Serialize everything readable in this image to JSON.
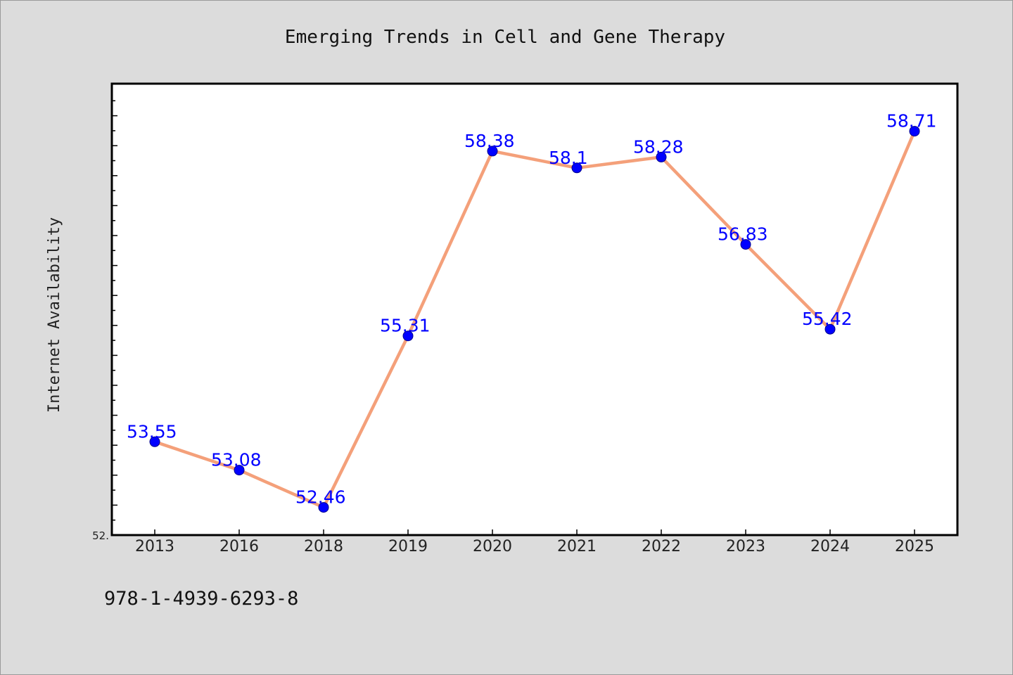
{
  "chart_data": {
    "type": "line",
    "title": "Emerging Trends in Cell and Gene Therapy",
    "xlabel": "",
    "ylabel": "Internet Availability",
    "categories": [
      "2013",
      "2016",
      "2018",
      "2019",
      "2020",
      "2021",
      "2022",
      "2023",
      "2024",
      "2025"
    ],
    "series": [
      {
        "values": [
          53.55,
          53.08,
          52.46,
          55.31,
          58.38,
          58.1,
          58.28,
          56.83,
          55.42,
          58.71
        ]
      }
    ],
    "data_labels": [
      "53.55",
      "53.08",
      "52.46",
      "55.31",
      "58.38",
      "58.1",
      "58.28",
      "56.83",
      "55.42",
      "58.71"
    ],
    "ylim": [
      52.0,
      59.5
    ],
    "ytick_labels": [
      "52."
    ],
    "grid": false,
    "legend": "none",
    "line_color": "#f4a07a",
    "marker_color": "#0000ff",
    "label_color": "#0000ff",
    "plot_background": "#ffffff",
    "page_background": "#dcdcdc"
  },
  "footer_text": "978-1-4939-6293-8"
}
